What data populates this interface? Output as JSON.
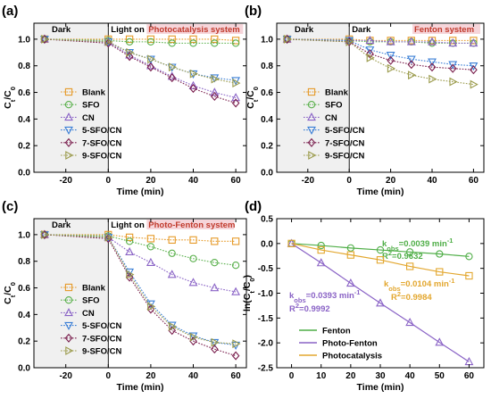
{
  "chart_data": [
    {
      "type": "line",
      "panel_label": "(a)",
      "xlabel": "Time (min)",
      "ylabel": "Ct/C0",
      "xlim": [
        -35,
        65
      ],
      "ylim": [
        0.0,
        1.12
      ],
      "xticks": [
        -20,
        0,
        20,
        40,
        60
      ],
      "yticks": [
        0.0,
        0.2,
        0.4,
        0.6,
        0.8,
        1.0
      ],
      "x": [
        -30,
        0,
        10,
        20,
        30,
        40,
        50,
        60
      ],
      "legend_position": "bottom-left",
      "annotations": [
        {
          "text": "Dark",
          "color": "#000000"
        },
        {
          "text": "Light on",
          "color": "#000000"
        },
        {
          "text": "Photocatalysis system",
          "color": "#c0392b",
          "highlight": "#f6d5da"
        }
      ],
      "series": [
        {
          "name": "Blank",
          "color": "#e69a28",
          "marker": "square",
          "values": [
            1.0,
            1.0,
            1.0,
            1.0,
            1.0,
            1.0,
            1.0,
            0.99
          ]
        },
        {
          "name": "SFO",
          "color": "#5ab04c",
          "marker": "circle",
          "values": [
            1.0,
            0.99,
            0.98,
            0.98,
            0.97,
            0.97,
            0.97,
            0.97
          ]
        },
        {
          "name": "CN",
          "color": "#8a63c6",
          "marker": "triangle-up",
          "values": [
            1.0,
            0.98,
            0.88,
            0.8,
            0.72,
            0.65,
            0.6,
            0.56
          ]
        },
        {
          "name": "5-SFO/CN",
          "color": "#3b7fd6",
          "marker": "triangle-down",
          "values": [
            1.0,
            0.98,
            0.9,
            0.85,
            0.79,
            0.74,
            0.71,
            0.69
          ]
        },
        {
          "name": "7-SFO/CN",
          "color": "#7a1f4e",
          "marker": "diamond",
          "values": [
            1.0,
            0.97,
            0.87,
            0.79,
            0.71,
            0.63,
            0.57,
            0.52
          ]
        },
        {
          "name": "9-SFO/CN",
          "color": "#9a9a4a",
          "marker": "triangle-right",
          "values": [
            1.0,
            0.98,
            0.9,
            0.85,
            0.79,
            0.74,
            0.7,
            0.67
          ]
        }
      ]
    },
    {
      "type": "line",
      "panel_label": "(b)",
      "xlabel": "Time (min)",
      "ylabel": "Ct/C0",
      "xlim": [
        -35,
        65
      ],
      "ylim": [
        0.0,
        1.12
      ],
      "xticks": [
        -20,
        0,
        20,
        40,
        60
      ],
      "yticks": [
        0.0,
        0.2,
        0.4,
        0.6,
        0.8,
        1.0
      ],
      "x": [
        -30,
        0,
        10,
        20,
        30,
        40,
        50,
        60
      ],
      "legend_position": "bottom-left",
      "annotations": [
        {
          "text": "Dark",
          "color": "#000000"
        },
        {
          "text": "Dark",
          "color": "#000000"
        },
        {
          "text": "Fenton system",
          "color": "#c0392b",
          "highlight": "#f6d5da"
        }
      ],
      "series": [
        {
          "name": "Blank",
          "color": "#e69a28",
          "marker": "square",
          "values": [
            1.0,
            1.0,
            0.99,
            0.99,
            0.99,
            0.99,
            0.99,
            0.99
          ]
        },
        {
          "name": "SFO",
          "color": "#5ab04c",
          "marker": "circle",
          "values": [
            1.0,
            0.99,
            0.98,
            0.98,
            0.98,
            0.97,
            0.97,
            0.97
          ]
        },
        {
          "name": "CN",
          "color": "#8a63c6",
          "marker": "triangle-up",
          "values": [
            1.0,
            0.99,
            0.99,
            0.98,
            0.98,
            0.98,
            0.97,
            0.97
          ]
        },
        {
          "name": "5-SFO/CN",
          "color": "#3b7fd6",
          "marker": "triangle-down",
          "values": [
            1.0,
            0.99,
            0.92,
            0.88,
            0.85,
            0.83,
            0.81,
            0.8
          ]
        },
        {
          "name": "7-SFO/CN",
          "color": "#7a1f4e",
          "marker": "diamond",
          "values": [
            1.0,
            0.98,
            0.89,
            0.84,
            0.81,
            0.79,
            0.78,
            0.77
          ]
        },
        {
          "name": "9-SFO/CN",
          "color": "#9a9a4a",
          "marker": "triangle-right",
          "values": [
            1.0,
            0.98,
            0.86,
            0.78,
            0.73,
            0.7,
            0.68,
            0.66
          ]
        }
      ]
    },
    {
      "type": "line",
      "panel_label": "(c)",
      "xlabel": "Time (min)",
      "ylabel": "Ct/C0",
      "xlim": [
        -35,
        65
      ],
      "ylim": [
        0.0,
        1.12
      ],
      "xticks": [
        -20,
        0,
        20,
        40,
        60
      ],
      "yticks": [
        0.0,
        0.2,
        0.4,
        0.6,
        0.8,
        1.0
      ],
      "x": [
        -30,
        0,
        10,
        20,
        30,
        40,
        50,
        60
      ],
      "legend_position": "bottom-left",
      "annotations": [
        {
          "text": "Dark",
          "color": "#000000"
        },
        {
          "text": "Light on",
          "color": "#000000"
        },
        {
          "text": "Photo-Fenton system",
          "color": "#c0392b",
          "highlight": "#f6d5da"
        }
      ],
      "series": [
        {
          "name": "Blank",
          "color": "#e69a28",
          "marker": "square",
          "values": [
            1.0,
            1.0,
            0.98,
            0.97,
            0.96,
            0.96,
            0.95,
            0.95
          ]
        },
        {
          "name": "SFO",
          "color": "#5ab04c",
          "marker": "circle",
          "values": [
            1.0,
            0.99,
            0.95,
            0.91,
            0.86,
            0.82,
            0.79,
            0.77
          ]
        },
        {
          "name": "CN",
          "color": "#8a63c6",
          "marker": "triangle-up",
          "values": [
            1.0,
            0.98,
            0.87,
            0.79,
            0.7,
            0.64,
            0.6,
            0.57
          ]
        },
        {
          "name": "5-SFO/CN",
          "color": "#3b7fd6",
          "marker": "triangle-down",
          "values": [
            1.0,
            0.98,
            0.72,
            0.48,
            0.32,
            0.24,
            0.19,
            0.17
          ]
        },
        {
          "name": "7-SFO/CN",
          "color": "#7a1f4e",
          "marker": "diamond",
          "values": [
            1.0,
            0.97,
            0.68,
            0.44,
            0.28,
            0.2,
            0.14,
            0.09
          ]
        },
        {
          "name": "9-SFO/CN",
          "color": "#9a9a4a",
          "marker": "triangle-right",
          "values": [
            1.0,
            0.98,
            0.7,
            0.46,
            0.31,
            0.23,
            0.19,
            0.18
          ]
        }
      ]
    },
    {
      "type": "line",
      "panel_label": "(d)",
      "xlabel": "Time (min)",
      "ylabel": "ln(Ct/C0)",
      "xlim": [
        -5,
        65
      ],
      "ylim": [
        -2.5,
        0.5
      ],
      "xticks": [
        0,
        10,
        20,
        30,
        40,
        50,
        60
      ],
      "yticks": [
        -2.5,
        -2.0,
        -1.5,
        -1.0,
        -0.5,
        0.0,
        0.5
      ],
      "x": [
        0,
        10,
        20,
        30,
        40,
        50,
        60
      ],
      "legend_position": "bottom-left",
      "annotations": [
        {
          "text": "kobs=0.0039 min-1",
          "r2": "R2=0.9632",
          "color": "#4fae47"
        },
        {
          "text": "kobs=0.0104 min-1",
          "r2": "R2=0.9984",
          "color": "#e3a72f"
        },
        {
          "text": "kobs=0.0393 min-1",
          "r2": "R2=0.9992",
          "color": "#8a63c6"
        }
      ],
      "series": [
        {
          "name": "Fenton",
          "color": "#4fae47",
          "marker": "circle",
          "values": [
            0.0,
            -0.04,
            -0.09,
            -0.13,
            -0.17,
            -0.21,
            -0.26
          ]
        },
        {
          "name": "Photo-Fenton",
          "color": "#8a63c6",
          "marker": "triangle-up",
          "values": [
            0.0,
            -0.39,
            -0.8,
            -1.2,
            -1.59,
            -1.99,
            -2.38
          ]
        },
        {
          "name": "Photocatalysis",
          "color": "#e3a72f",
          "marker": "square",
          "values": [
            0.0,
            -0.13,
            -0.23,
            -0.33,
            -0.46,
            -0.57,
            -0.65
          ]
        }
      ]
    }
  ]
}
